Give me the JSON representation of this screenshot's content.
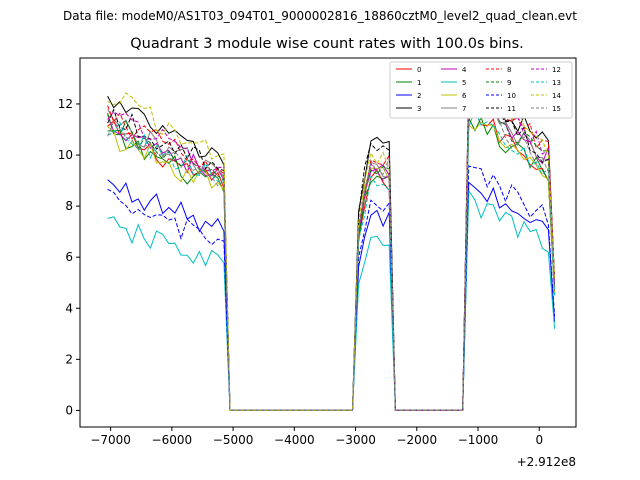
{
  "suptitle": "Data file: modeM0/AS1T03_094T01_9000002816_18860cztM0_level2_quad_clean.evt",
  "chart_data": {
    "type": "line",
    "title": "Quadrant 3 module wise count rates with 100.0s bins.",
    "xlabel": "",
    "ylabel": "",
    "x_offset_label": "+2.912e8",
    "xlim": [
      -7500,
      600
    ],
    "ylim": [
      -0.65,
      13.8
    ],
    "x_ticks": [
      -7000,
      -6000,
      -5000,
      -4000,
      -3000,
      -2000,
      -1000,
      0
    ],
    "x_tick_labels": [
      "−7000",
      "−6000",
      "−5000",
      "−4000",
      "−3000",
      "−2000",
      "−1000",
      "0"
    ],
    "y_ticks": [
      0,
      2,
      4,
      6,
      8,
      10,
      12
    ],
    "y_tick_labels": [
      "0",
      "2",
      "4",
      "6",
      "8",
      "10",
      "12"
    ],
    "legend_position": "top-right",
    "segments": [
      {
        "start": -7050,
        "end": -5150
      },
      {
        "start": -2950,
        "end": -2450
      },
      {
        "start": -1150,
        "end": 250
      }
    ],
    "series": [
      {
        "name": "0",
        "color": "#ff0000",
        "dash": "solid",
        "levels": [
          10.2,
          9.0,
          10.2
        ]
      },
      {
        "name": "1",
        "color": "#008000",
        "dash": "solid",
        "levels": [
          10.0,
          8.8,
          10.0
        ]
      },
      {
        "name": "2",
        "color": "#0000ff",
        "dash": "solid",
        "levels": [
          8.2,
          7.5,
          7.7
        ]
      },
      {
        "name": "3",
        "color": "#000000",
        "dash": "solid",
        "levels": [
          11.2,
          10.4,
          11.3
        ]
      },
      {
        "name": "4",
        "color": "#c000c0",
        "dash": "solid",
        "levels": [
          10.5,
          9.2,
          10.8
        ]
      },
      {
        "name": "5",
        "color": "#00c0c0",
        "dash": "solid",
        "levels": [
          6.7,
          6.6,
          7.1
        ]
      },
      {
        "name": "6",
        "color": "#c0c000",
        "dash": "solid",
        "levels": [
          10.0,
          9.3,
          10.0
        ]
      },
      {
        "name": "7",
        "color": "#808080",
        "dash": "solid",
        "levels": [
          10.6,
          9.5,
          10.6
        ]
      },
      {
        "name": "8",
        "color": "#ff0000",
        "dash": "dashed",
        "levels": [
          10.7,
          9.6,
          11.2
        ]
      },
      {
        "name": "9",
        "color": "#008000",
        "dash": "dashed",
        "levels": [
          10.4,
          9.2,
          10.6
        ]
      },
      {
        "name": "10",
        "color": "#0000ff",
        "dash": "dashed",
        "levels": [
          7.6,
          8.0,
          8.2
        ]
      },
      {
        "name": "11",
        "color": "#000000",
        "dash": "dashed",
        "levels": [
          10.8,
          10.2,
          10.8
        ]
      },
      {
        "name": "12",
        "color": "#c000c0",
        "dash": "dashed",
        "levels": [
          10.9,
          9.4,
          11.0
        ]
      },
      {
        "name": "13",
        "color": "#00c0c0",
        "dash": "dashed",
        "levels": [
          10.3,
          8.9,
          10.0
        ]
      },
      {
        "name": "14",
        "color": "#c0c000",
        "dash": "dashed",
        "levels": [
          11.5,
          9.8,
          11.3
        ]
      },
      {
        "name": "15",
        "color": "#808080",
        "dash": "dashed",
        "levels": [
          10.2,
          9.5,
          10.4
        ]
      }
    ]
  }
}
